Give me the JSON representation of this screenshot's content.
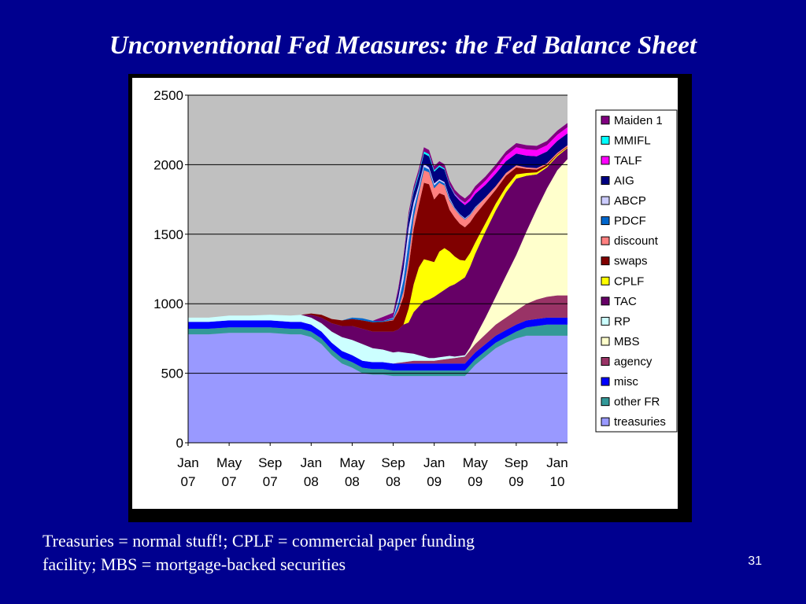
{
  "slide": {
    "title": "Unconventional Fed Measures: the Fed Balance Sheet",
    "caption_line1": "Treasuries = normal stuff!; CPLF = commercial paper funding",
    "caption_line2": "facility; MBS = mortgage-backed securities",
    "page_number": "31"
  },
  "chart_data": {
    "type": "area",
    "stacked": true,
    "title": "",
    "xlabel": "",
    "ylabel": "",
    "ylim": [
      0,
      2500
    ],
    "yticks": [
      0,
      500,
      1000,
      1500,
      2000,
      2500
    ],
    "xlim": [
      0,
      37
    ],
    "x_tick_positions": [
      0,
      4,
      8,
      12,
      16,
      20,
      24,
      28,
      32,
      36
    ],
    "x_tick_labels": [
      {
        "month": "Jan",
        "year": "07"
      },
      {
        "month": "May",
        "year": "07"
      },
      {
        "month": "Sep",
        "year": "07"
      },
      {
        "month": "Jan",
        "year": "08"
      },
      {
        "month": "May",
        "year": "08"
      },
      {
        "month": "Sep",
        "year": "08"
      },
      {
        "month": "Jan",
        "year": "09"
      },
      {
        "month": "May",
        "year": "09"
      },
      {
        "month": "Sep",
        "year": "09"
      },
      {
        "month": "Jan",
        "year": "10"
      }
    ],
    "grid": "horizontal",
    "plot_background": "#c0c0c0",
    "legend_position": "right",
    "x": [
      0,
      2,
      4,
      6,
      8,
      10,
      11,
      12,
      13,
      14,
      15,
      16,
      17,
      18,
      19,
      20,
      20.5,
      21,
      21.5,
      22,
      22.5,
      23,
      23.5,
      24,
      24.5,
      25,
      25.5,
      26,
      26.5,
      27,
      27.5,
      28,
      29,
      30,
      31,
      32,
      33,
      34,
      35,
      36,
      37
    ],
    "series": [
      {
        "name": "treasuries",
        "color": "#9999ff",
        "values": [
          780,
          780,
          790,
          790,
          790,
          780,
          780,
          760,
          710,
          630,
          570,
          540,
          500,
          490,
          490,
          480,
          480,
          480,
          480,
          480,
          480,
          480,
          480,
          480,
          480,
          480,
          480,
          480,
          480,
          480,
          520,
          560,
          620,
          680,
          720,
          750,
          770,
          770,
          770,
          770,
          770
        ]
      },
      {
        "name": "other FR",
        "color": "#339999",
        "values": [
          40,
          40,
          40,
          40,
          40,
          40,
          40,
          40,
          40,
          40,
          40,
          40,
          40,
          40,
          40,
          40,
          40,
          40,
          40,
          40,
          40,
          40,
          40,
          40,
          40,
          40,
          40,
          40,
          40,
          40,
          40,
          40,
          40,
          40,
          40,
          50,
          60,
          70,
          80,
          80,
          80
        ]
      },
      {
        "name": "misc",
        "color": "#0000ff",
        "values": [
          50,
          50,
          50,
          50,
          50,
          50,
          50,
          50,
          50,
          50,
          50,
          50,
          50,
          50,
          50,
          50,
          50,
          50,
          50,
          50,
          50,
          50,
          50,
          50,
          50,
          50,
          50,
          50,
          50,
          50,
          50,
          50,
          50,
          50,
          50,
          50,
          50,
          50,
          50,
          50,
          50
        ]
      },
      {
        "name": "agency",
        "color": "#993366",
        "values": [
          0,
          0,
          0,
          0,
          0,
          0,
          0,
          0,
          0,
          0,
          0,
          0,
          0,
          0,
          0,
          0,
          5,
          10,
          15,
          20,
          20,
          20,
          20,
          20,
          25,
          30,
          35,
          40,
          45,
          50,
          55,
          60,
          70,
          80,
          90,
          100,
          120,
          140,
          150,
          160,
          160
        ]
      },
      {
        "name": "MBS",
        "color": "#ffffcc",
        "values": [
          0,
          0,
          0,
          0,
          0,
          0,
          0,
          0,
          0,
          0,
          0,
          0,
          0,
          0,
          0,
          0,
          0,
          0,
          0,
          0,
          0,
          0,
          0,
          0,
          0,
          0,
          0,
          0,
          0,
          0,
          20,
          50,
          120,
          200,
          300,
          400,
          520,
          650,
          780,
          900,
          980
        ]
      },
      {
        "name": "RP",
        "color": "#ccffff",
        "values": [
          30,
          30,
          35,
          35,
          40,
          45,
          50,
          50,
          60,
          80,
          100,
          110,
          120,
          100,
          90,
          80,
          80,
          70,
          60,
          50,
          40,
          30,
          20,
          20,
          20,
          20,
          20,
          10,
          10,
          10,
          0,
          0,
          0,
          0,
          0,
          0,
          0,
          0,
          0,
          0,
          0
        ]
      },
      {
        "name": "TAC",
        "color": "#660066",
        "values": [
          0,
          0,
          0,
          0,
          0,
          0,
          0,
          20,
          40,
          60,
          80,
          100,
          110,
          120,
          130,
          150,
          160,
          200,
          220,
          300,
          350,
          400,
          420,
          440,
          460,
          480,
          500,
          520,
          540,
          560,
          580,
          600,
          620,
          620,
          600,
          550,
          400,
          250,
          150,
          100,
          80
        ]
      },
      {
        "name": "CPLF",
        "color": "#ffff00",
        "values": [
          0,
          0,
          0,
          0,
          0,
          0,
          0,
          0,
          0,
          0,
          0,
          0,
          0,
          0,
          0,
          0,
          0,
          0,
          100,
          200,
          280,
          300,
          280,
          250,
          300,
          300,
          250,
          200,
          150,
          120,
          100,
          80,
          60,
          50,
          40,
          30,
          20,
          15,
          10,
          10,
          5
        ]
      },
      {
        "name": "swaps",
        "color": "#800000",
        "values": [
          0,
          0,
          0,
          0,
          0,
          0,
          0,
          10,
          20,
          30,
          40,
          50,
          60,
          67,
          70,
          80,
          130,
          200,
          300,
          400,
          450,
          550,
          550,
          450,
          420,
          380,
          300,
          280,
          260,
          240,
          220,
          200,
          150,
          100,
          80,
          50,
          30,
          20,
          10,
          5,
          5
        ]
      },
      {
        "name": "discount",
        "color": "#ff8080",
        "values": [
          0,
          0,
          0,
          0,
          0,
          0,
          0,
          0,
          0,
          0,
          0,
          0,
          0,
          0,
          0,
          5,
          20,
          40,
          60,
          80,
          85,
          90,
          85,
          80,
          75,
          70,
          65,
          60,
          60,
          55,
          50,
          45,
          35,
          25,
          20,
          15,
          10,
          10,
          10,
          10,
          10
        ]
      },
      {
        "name": "PDCF",
        "color": "#0066cc",
        "values": [
          0,
          0,
          0,
          0,
          0,
          0,
          0,
          0,
          0,
          0,
          0,
          10,
          15,
          10,
          5,
          10,
          40,
          80,
          120,
          60,
          30,
          25,
          20,
          20,
          15,
          15,
          10,
          5,
          5,
          5,
          5,
          5,
          0,
          0,
          0,
          0,
          0,
          0,
          0,
          0,
          0
        ]
      },
      {
        "name": "ABCP",
        "color": "#ccccff",
        "values": [
          0,
          0,
          0,
          0,
          0,
          0,
          0,
          0,
          0,
          0,
          0,
          0,
          0,
          0,
          0,
          5,
          40,
          80,
          100,
          50,
          30,
          20,
          15,
          15,
          10,
          10,
          10,
          5,
          5,
          5,
          5,
          5,
          0,
          0,
          0,
          0,
          0,
          0,
          0,
          0,
          0
        ]
      },
      {
        "name": "AIG",
        "color": "#000080",
        "values": [
          0,
          0,
          0,
          0,
          0,
          0,
          0,
          0,
          0,
          0,
          0,
          0,
          0,
          0,
          0,
          5,
          40,
          60,
          70,
          70,
          70,
          75,
          80,
          85,
          90,
          90,
          90,
          90,
          95,
          95,
          95,
          95,
          90,
          90,
          85,
          85,
          85,
          85,
          85,
          85,
          85
        ]
      },
      {
        "name": "TALF",
        "color": "#ff00ff",
        "values": [
          0,
          0,
          0,
          0,
          0,
          0,
          0,
          0,
          0,
          0,
          0,
          0,
          0,
          0,
          0,
          0,
          0,
          0,
          0,
          0,
          0,
          0,
          0,
          0,
          0,
          0,
          0,
          5,
          10,
          15,
          20,
          25,
          30,
          35,
          40,
          45,
          45,
          45,
          45,
          45,
          45
        ]
      },
      {
        "name": "MMIFL",
        "color": "#00ffff",
        "values": [
          0,
          0,
          0,
          0,
          0,
          0,
          0,
          0,
          0,
          0,
          0,
          0,
          0,
          0,
          0,
          0,
          0,
          0,
          10,
          15,
          15,
          15,
          15,
          10,
          10,
          8,
          6,
          5,
          3,
          2,
          0,
          0,
          0,
          0,
          0,
          0,
          0,
          0,
          0,
          0,
          0
        ]
      },
      {
        "name": "Maiden 1",
        "color": "#800080",
        "values": [
          0,
          0,
          0,
          0,
          0,
          0,
          0,
          0,
          0,
          0,
          0,
          0,
          0,
          0,
          30,
          30,
          30,
          30,
          30,
          30,
          30,
          30,
          30,
          30,
          30,
          30,
          30,
          30,
          30,
          30,
          30,
          30,
          30,
          30,
          30,
          30,
          30,
          30,
          30,
          30,
          30
        ]
      }
    ],
    "legend_order": [
      "Maiden 1",
      "MMIFL",
      "TALF",
      "AIG",
      "ABCP",
      "PDCF",
      "discount",
      "swaps",
      "CPLF",
      "TAC",
      "RP",
      "MBS",
      "agency",
      "misc",
      "other FR",
      "treasuries"
    ]
  }
}
